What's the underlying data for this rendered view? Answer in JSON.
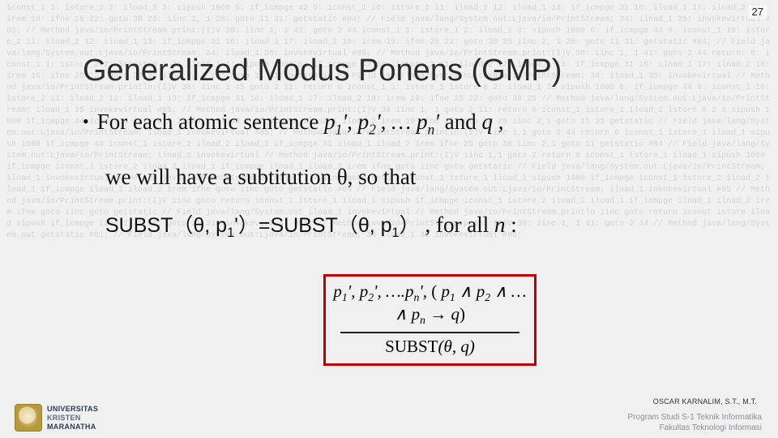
{
  "page_number": "27",
  "title": "Generalized Modus Ponens (GMP)",
  "bullet": {
    "lead": "For each atomic sentence ",
    "vars": "p₁', p₂', … pₙ'",
    "mid": " and ",
    "q": "q",
    "tail": " ,"
  },
  "line2": {
    "text_a": "we will have a subtitution ",
    "theta": "θ",
    "text_b": ", so that"
  },
  "line3": {
    "subst1": "SUBST（θ, p₁'）=SUBST（θ, p₁）",
    "trail": " , for all ",
    "nvar": "n",
    "colon": " :"
  },
  "rule": {
    "premises": "p₁', p₂', ….pₙ', ( p₁ ∧ p₂ ∧ … ∧ pₙ → q)",
    "conclusion": "SUBST(θ, q)"
  },
  "author": "OSCAR KARNALIM, S.T., M.T.",
  "uni": {
    "l1": "UNIVERSITAS",
    "l2": "KRISTEN",
    "l3": "MARANATHA"
  },
  "program": {
    "l1": "Program Studi S-1 Teknik Informatika",
    "l2": "Fakultas Teknologi Informasi"
  },
  "colors": {
    "box_border": "#c00000",
    "text": "#111111",
    "title": "#2b2b2b",
    "bg_code": "#c8c8c8",
    "footer_grey": "#8a8f97"
  },
  "bg_code_text": "iconst_1 1: istore_2 2: iload_3 3: sipush 1000 6: if_icmpge 42 9: iconst_1 10: istore_2 11: iload_2 12: iload_1 13: if_icmpge 31 16: iload_1 17: iload_2 18: irem 19: ifne 25 22: goto 38 25: iinc 2, 1 28: goto 11 31: getstatic #84; // Field java/lang/System.out:Ljava/io/PrintStream; 34: iload_1 35: invokevirtual #85; // Method java/io/PrintStream.print:(I)V 38: iinc 1, 1 41: goto 2 44 iconst_1 1: istore_1 2: iload_1 3: sipush 1000 6: if_icmpge 44 9: iconst_1 10: istore_2 11: iload_2 12: iload_1 13: if_icmpge 31 16: iload_1 17: iload_2 18: irem 19: ifne 25 22: goto 38 25 iinc 2, 1 28: goto 11 31: getstatic #84; // Field java/lang/System.out:Ljava/io/PrintStream; 34: iload_1 35: invokevirtual #85; // Method java/io/PrintStream.print:(I)V 38: iinc 1, 1 41: goto 2 44 return: 0: iconst_1 1: istore_2 2: iconst_0 1 3: iload_1 4: sipush 1000 6: if_icmpge 42 10: istore_2 11: iload_2 12: iload_1 13: if_icmpge 31 16: iload_1 17: iload_2 18: irem 19: ifne 25 22: goto 38 25 iinc 2, 1 28: goto 11 31: getstatic // Field java/lang/System.out:Ljava/io/PrintStream; 34: iload_1 35: invokevirtual // Method java/io/PrintStream.println:(I)V 38: iinc 1 45 goto 2 11: return 0 iconst_1 1: istore_1 istore 0 2: iload_1 3: sipush 1000 6: if_icmpge 44 9: iconst_1 10: istore_2 11: iload_2 12: iload_1 13: if_icmpge 31 16: iload_1 17: iload_2 18: irem 19: ifne 25 22: goto 38 25 // Method java/lang/System.out:Ljava/io/PrintStream; iload_1 35 invokevirtual #85; // Method java/io/PrintStream.print:(I)V 38 iinc 1, 1 goto 2 11: return 0 iconst_1 istore_1 iload_2 istore 0 2 3 sipush 1000 if_icmpge 44 iconst_1 istore_2 iload_2 iload_1 if_icmpge iload_1 iload_2 irem 19 ifne 25 goto 38 25 iinc 2,1 goto 11 31 getstatic // Field java/lang/System.out:Ljava/io/PrintStream; iload_1 invokevirtual #85; // Method java/io/PrintStream.println:(I)V iinc 1,1 goto 2 44 return 0 iconst_1 istore_1 iload_1 sipush 1000 if_icmpge 44 iconst_1 istore_2 iload_2 iload_1 if_icmpge 31 iload_1 iload_2 irem ifne 25 goto 38 iinc 2,1 goto 11 getstatic #84 // Field java/lang/System.out:Ljava/io/PrintStream; iload_1 invokevirtual // Method java/io/PrintStream.print:(I)V iinc 1,1 goto 2 return 0 iconst_1 istore_1 iload_1 sipush 1000 if_icmpge iconst_1 istore_2 iload_2 iload_1 if_icmpge iload_1 iload_2 irem ifne goto iinc goto getstatic // Field java/lang/System.out:Ljava/io/PrintStream; iload_1 invokevirtual // Method java/io/PrintStream.println:(I)V iinc goto return iconst_1 istore_1 iload_1 sipush 1000 if_icmpge iconst_1 istore_2 iload_2 iload_1 if_icmpge iload_1 iload_2 irem ifne goto iinc goto getstatic #84 // Field java/lang/System.out:Ljava/io/PrintStream; iload_1 invokevirtual #85 // Method java/io/PrintStream.print:(I)V iinc goto return iconst_1 istore_1 iload_1 sipush if_icmpge iconst_1 istore_2 iload_2 iload_1 if_icmpge iload_1 iload_2 irem ifne goto iinc goto getstatic // Field java/lang/System.out iload_1 invokevirtual // Method java/io/PrintStream.println iinc goto return iconst istore iload sipush if_icmpge iinc 2, 1 28: goto 11 31: invokevirtual #85; // Method java/io/PrintStream.print:(I)V 38: iinc 1, 1 41: goto 2 44 // Method java/lang/System.out getstatic #81; // Field java/lang/System.out:Ljava/io/PrintStream; 34 iload_1 35 invokevirtual #85;"
}
